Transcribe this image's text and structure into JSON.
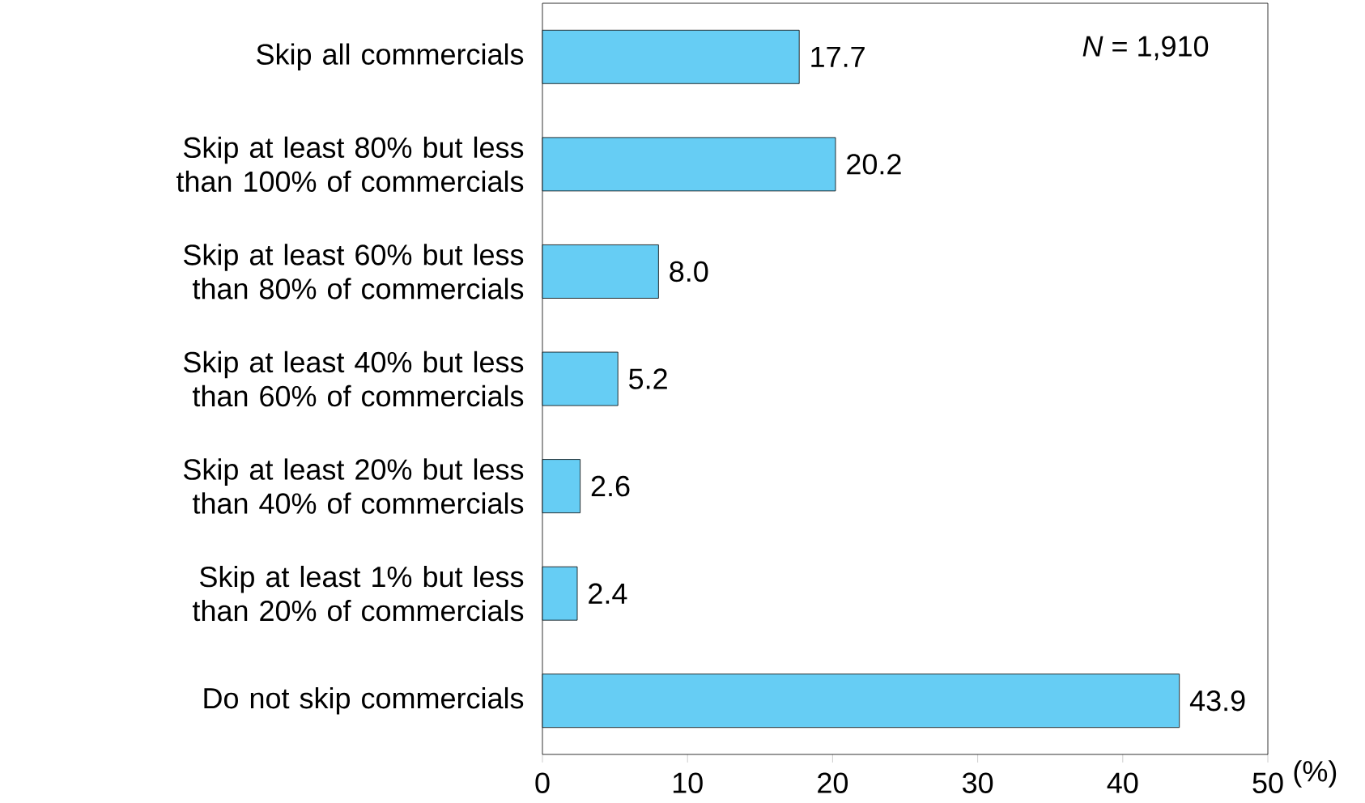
{
  "chart_data": {
    "type": "bar",
    "orientation": "horizontal",
    "categories": [
      "Skip all commercials",
      "Skip at least 80% but less than 100% of commercials",
      "Skip at least 60% but less than 80% of commercials",
      "Skip at least 40% but less than 60% of commercials",
      "Skip at least 20% but less than 40% of commercials",
      "Skip at least 1% but less than 20% of commercials",
      "Do not skip commercials"
    ],
    "values": [
      17.7,
      20.2,
      8.0,
      5.2,
      2.6,
      2.4,
      43.9
    ],
    "value_labels": [
      "17.7",
      "20.2",
      "8.0",
      "5.2",
      "2.6",
      "2.4",
      "43.9"
    ],
    "color": "#66cdf4",
    "xlim": [
      0,
      50
    ],
    "xticks": [
      0,
      10,
      20,
      30,
      40,
      50
    ],
    "xlabel": "(%)",
    "annotations": [
      "*N* = 1,910"
    ],
    "grid": false
  }
}
